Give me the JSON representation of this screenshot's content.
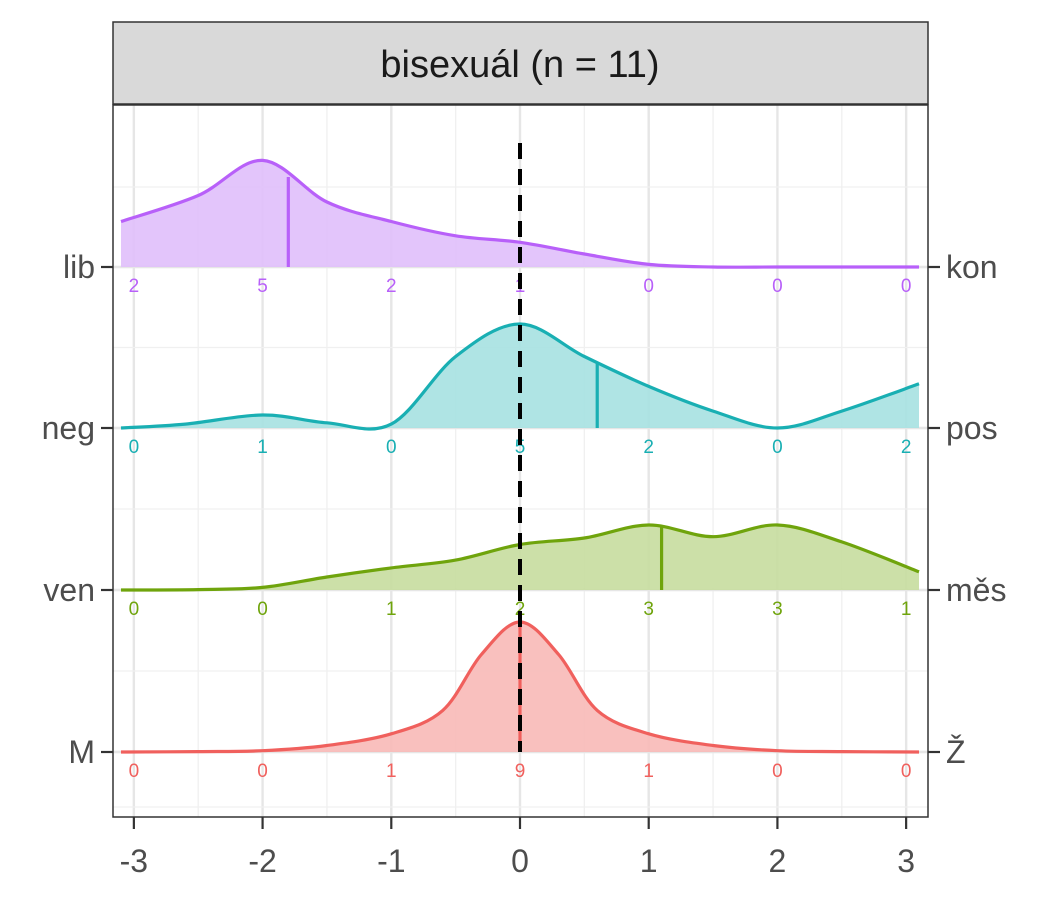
{
  "chart_data": {
    "type": "area",
    "title": "",
    "facet_label": "bisexuál (n = 11)",
    "xlabel": "",
    "ylabel": "",
    "xlim": [
      -3.1,
      3.1
    ],
    "x_ticks": [
      -3,
      -2,
      -1,
      0,
      1,
      2,
      3
    ],
    "x_tick_labels": [
      "-3",
      "-2",
      "-1",
      "0",
      "1",
      "2",
      "3"
    ],
    "reference_line_x": 0,
    "grid": true,
    "legend": "none",
    "series": [
      {
        "name": "",
        "left_label": "M",
        "right_label": "Ž",
        "color": "#F0605D",
        "fill": "#F8B9B7",
        "mean": 0,
        "counts": [
          0,
          0,
          1,
          9,
          1,
          0,
          0
        ],
        "density": [
          [
            -3.1,
            0
          ],
          [
            -2.5,
            0.003
          ],
          [
            -2,
            0.01
          ],
          [
            -1.5,
            0.05
          ],
          [
            -1,
            0.14
          ],
          [
            -0.6,
            0.32
          ],
          [
            -0.3,
            0.75
          ],
          [
            0,
            1
          ],
          [
            0.3,
            0.75
          ],
          [
            0.6,
            0.32
          ],
          [
            1,
            0.14
          ],
          [
            1.5,
            0.05
          ],
          [
            2,
            0.01
          ],
          [
            2.5,
            0.003
          ],
          [
            3.1,
            0
          ]
        ]
      },
      {
        "name": "",
        "left_label": "ven",
        "right_label": "měs",
        "color": "#6FA40C",
        "fill": "#C7DD9F",
        "mean": 1.1,
        "counts": [
          0,
          0,
          1,
          2,
          3,
          3,
          1
        ],
        "density": [
          [
            -3.1,
            0
          ],
          [
            -2.5,
            0.003
          ],
          [
            -2,
            0.02
          ],
          [
            -1.5,
            0.1
          ],
          [
            -1,
            0.17
          ],
          [
            -0.5,
            0.23
          ],
          [
            0,
            0.35
          ],
          [
            0.5,
            0.4
          ],
          [
            1,
            0.5
          ],
          [
            1.5,
            0.41
          ],
          [
            2,
            0.5
          ],
          [
            2.5,
            0.37
          ],
          [
            3.1,
            0.14
          ]
        ]
      },
      {
        "name": "",
        "left_label": "neg",
        "right_label": "pos",
        "color": "#19AFB3",
        "fill": "#A6E1E1",
        "mean": 0.6,
        "counts": [
          0,
          1,
          0,
          5,
          2,
          0,
          2
        ],
        "density": [
          [
            -3.1,
            0
          ],
          [
            -2.6,
            0.03
          ],
          [
            -2,
            0.1
          ],
          [
            -1.5,
            0.04
          ],
          [
            -1,
            0.03
          ],
          [
            -0.5,
            0.55
          ],
          [
            0,
            0.8
          ],
          [
            0.5,
            0.55
          ],
          [
            1,
            0.32
          ],
          [
            1.5,
            0.13
          ],
          [
            2,
            0
          ],
          [
            2.5,
            0.13
          ],
          [
            3.1,
            0.34
          ]
        ]
      },
      {
        "name": "",
        "left_label": "lib",
        "right_label": "kon",
        "color": "#B860F9",
        "fill": "#E0BFFB",
        "mean": -1.8,
        "counts": [
          2,
          5,
          2,
          1,
          0,
          0,
          0
        ],
        "density": [
          [
            -3.1,
            0.35
          ],
          [
            -2.5,
            0.55
          ],
          [
            -2,
            0.82
          ],
          [
            -1.5,
            0.5
          ],
          [
            -1,
            0.35
          ],
          [
            -0.5,
            0.24
          ],
          [
            0,
            0.19
          ],
          [
            0.5,
            0.1
          ],
          [
            1,
            0.02
          ],
          [
            1.5,
            0
          ],
          [
            2,
            0
          ],
          [
            2.5,
            0
          ],
          [
            3.1,
            0
          ]
        ]
      }
    ]
  }
}
